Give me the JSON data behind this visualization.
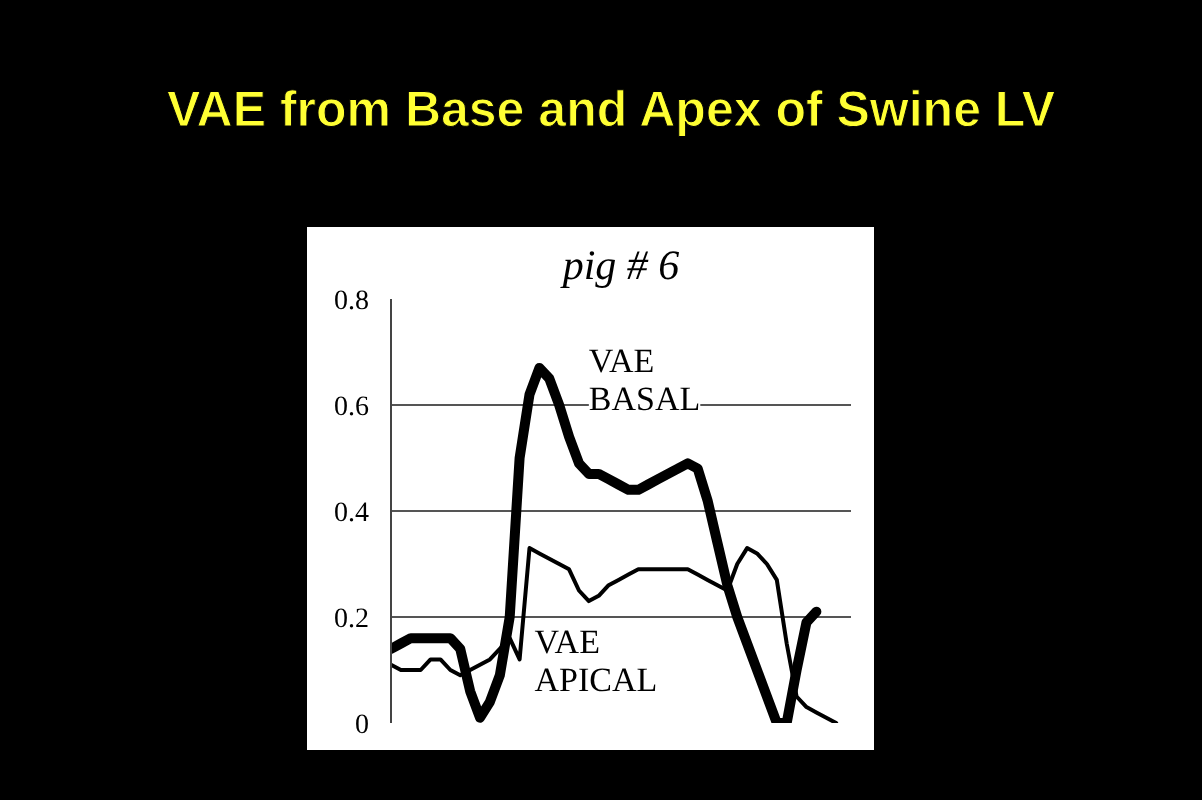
{
  "chart_data": {
    "type": "line",
    "title": "VAE from Base and Apex of Swine LV",
    "subtitle": "pig # 6",
    "categories": [
      null,
      null,
      null,
      null,
      null,
      null,
      null,
      null,
      null,
      null,
      null,
      null,
      null,
      null,
      null,
      null,
      null,
      null,
      null,
      null,
      null,
      null,
      null,
      null,
      null,
      null,
      null,
      null,
      null,
      null,
      null,
      null,
      null,
      null,
      null,
      null,
      null,
      null,
      null,
      null,
      null,
      null,
      null,
      null,
      null,
      null,
      null
    ],
    "series": [
      {
        "name": "VAE BASAL",
        "color": "#000000",
        "values": [
          0.14,
          0.15,
          0.16,
          0.16,
          0.16,
          0.16,
          0.16,
          0.14,
          0.06,
          0.01,
          0.04,
          0.09,
          0.2,
          0.5,
          0.62,
          0.67,
          0.65,
          0.6,
          0.54,
          0.49,
          0.47,
          0.47,
          0.46,
          0.45,
          0.44,
          0.44,
          0.45,
          0.46,
          0.47,
          0.48,
          0.49,
          0.48,
          0.42,
          0.34,
          0.26,
          0.2,
          0.15,
          0.1,
          0.05,
          0.0,
          0.0,
          0.1,
          0.19,
          0.21,
          null,
          null,
          null
        ]
      },
      {
        "name": "VAE APICAL",
        "color": "#000000",
        "values": [
          0.11,
          0.1,
          0.1,
          0.1,
          0.12,
          0.12,
          0.1,
          0.09,
          0.1,
          0.11,
          0.12,
          0.14,
          0.16,
          0.12,
          0.33,
          0.32,
          0.31,
          0.3,
          0.29,
          0.25,
          0.23,
          0.24,
          0.26,
          0.27,
          0.28,
          0.29,
          0.29,
          0.29,
          0.29,
          0.29,
          0.29,
          0.28,
          0.27,
          0.26,
          0.25,
          0.3,
          0.33,
          0.32,
          0.3,
          0.27,
          0.15,
          0.05,
          0.03,
          0.02,
          0.01,
          0.0,
          null
        ]
      }
    ],
    "ylim": [
      0,
      0.8
    ],
    "yticks": [
      0,
      0.2,
      0.4,
      0.6,
      0.8
    ],
    "grid": "y",
    "tick_labels": "y"
  }
}
